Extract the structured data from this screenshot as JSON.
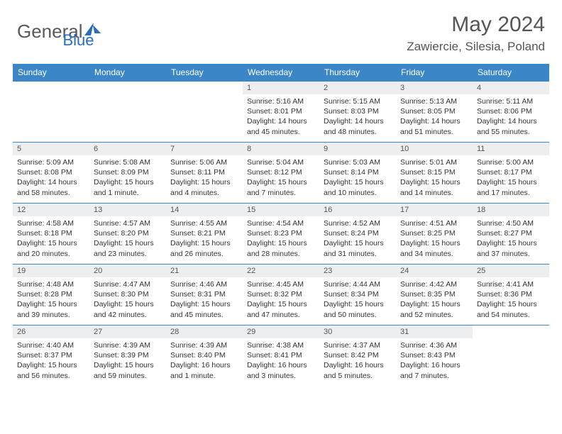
{
  "brand": {
    "word1": "General",
    "word2": "Blue"
  },
  "title": "May 2024",
  "location": "Zawiercie, Silesia, Poland",
  "colors": {
    "header_bg": "#3b86c7",
    "header_text": "#ffffff",
    "daynum_bg": "#eceeef",
    "row_border": "#3b86c7",
    "title_color": "#555555",
    "body_text": "#333333"
  },
  "day_headers": [
    "Sunday",
    "Monday",
    "Tuesday",
    "Wednesday",
    "Thursday",
    "Friday",
    "Saturday"
  ],
  "weeks": [
    [
      {
        "n": "",
        "sr": "",
        "ss": "",
        "dl": ""
      },
      {
        "n": "",
        "sr": "",
        "ss": "",
        "dl": ""
      },
      {
        "n": "",
        "sr": "",
        "ss": "",
        "dl": ""
      },
      {
        "n": "1",
        "sr": "5:16 AM",
        "ss": "8:01 PM",
        "dl": "14 hours and 45 minutes."
      },
      {
        "n": "2",
        "sr": "5:15 AM",
        "ss": "8:03 PM",
        "dl": "14 hours and 48 minutes."
      },
      {
        "n": "3",
        "sr": "5:13 AM",
        "ss": "8:05 PM",
        "dl": "14 hours and 51 minutes."
      },
      {
        "n": "4",
        "sr": "5:11 AM",
        "ss": "8:06 PM",
        "dl": "14 hours and 55 minutes."
      }
    ],
    [
      {
        "n": "5",
        "sr": "5:09 AM",
        "ss": "8:08 PM",
        "dl": "14 hours and 58 minutes."
      },
      {
        "n": "6",
        "sr": "5:08 AM",
        "ss": "8:09 PM",
        "dl": "15 hours and 1 minute."
      },
      {
        "n": "7",
        "sr": "5:06 AM",
        "ss": "8:11 PM",
        "dl": "15 hours and 4 minutes."
      },
      {
        "n": "8",
        "sr": "5:04 AM",
        "ss": "8:12 PM",
        "dl": "15 hours and 7 minutes."
      },
      {
        "n": "9",
        "sr": "5:03 AM",
        "ss": "8:14 PM",
        "dl": "15 hours and 10 minutes."
      },
      {
        "n": "10",
        "sr": "5:01 AM",
        "ss": "8:15 PM",
        "dl": "15 hours and 14 minutes."
      },
      {
        "n": "11",
        "sr": "5:00 AM",
        "ss": "8:17 PM",
        "dl": "15 hours and 17 minutes."
      }
    ],
    [
      {
        "n": "12",
        "sr": "4:58 AM",
        "ss": "8:18 PM",
        "dl": "15 hours and 20 minutes."
      },
      {
        "n": "13",
        "sr": "4:57 AM",
        "ss": "8:20 PM",
        "dl": "15 hours and 23 minutes."
      },
      {
        "n": "14",
        "sr": "4:55 AM",
        "ss": "8:21 PM",
        "dl": "15 hours and 26 minutes."
      },
      {
        "n": "15",
        "sr": "4:54 AM",
        "ss": "8:23 PM",
        "dl": "15 hours and 28 minutes."
      },
      {
        "n": "16",
        "sr": "4:52 AM",
        "ss": "8:24 PM",
        "dl": "15 hours and 31 minutes."
      },
      {
        "n": "17",
        "sr": "4:51 AM",
        "ss": "8:25 PM",
        "dl": "15 hours and 34 minutes."
      },
      {
        "n": "18",
        "sr": "4:50 AM",
        "ss": "8:27 PM",
        "dl": "15 hours and 37 minutes."
      }
    ],
    [
      {
        "n": "19",
        "sr": "4:48 AM",
        "ss": "8:28 PM",
        "dl": "15 hours and 39 minutes."
      },
      {
        "n": "20",
        "sr": "4:47 AM",
        "ss": "8:30 PM",
        "dl": "15 hours and 42 minutes."
      },
      {
        "n": "21",
        "sr": "4:46 AM",
        "ss": "8:31 PM",
        "dl": "15 hours and 45 minutes."
      },
      {
        "n": "22",
        "sr": "4:45 AM",
        "ss": "8:32 PM",
        "dl": "15 hours and 47 minutes."
      },
      {
        "n": "23",
        "sr": "4:44 AM",
        "ss": "8:34 PM",
        "dl": "15 hours and 50 minutes."
      },
      {
        "n": "24",
        "sr": "4:42 AM",
        "ss": "8:35 PM",
        "dl": "15 hours and 52 minutes."
      },
      {
        "n": "25",
        "sr": "4:41 AM",
        "ss": "8:36 PM",
        "dl": "15 hours and 54 minutes."
      }
    ],
    [
      {
        "n": "26",
        "sr": "4:40 AM",
        "ss": "8:37 PM",
        "dl": "15 hours and 56 minutes."
      },
      {
        "n": "27",
        "sr": "4:39 AM",
        "ss": "8:39 PM",
        "dl": "15 hours and 59 minutes."
      },
      {
        "n": "28",
        "sr": "4:39 AM",
        "ss": "8:40 PM",
        "dl": "16 hours and 1 minute."
      },
      {
        "n": "29",
        "sr": "4:38 AM",
        "ss": "8:41 PM",
        "dl": "16 hours and 3 minutes."
      },
      {
        "n": "30",
        "sr": "4:37 AM",
        "ss": "8:42 PM",
        "dl": "16 hours and 5 minutes."
      },
      {
        "n": "31",
        "sr": "4:36 AM",
        "ss": "8:43 PM",
        "dl": "16 hours and 7 minutes."
      },
      {
        "n": "",
        "sr": "",
        "ss": "",
        "dl": ""
      }
    ]
  ],
  "labels": {
    "sunrise": "Sunrise: ",
    "sunset": "Sunset: ",
    "daylight": "Daylight: "
  }
}
